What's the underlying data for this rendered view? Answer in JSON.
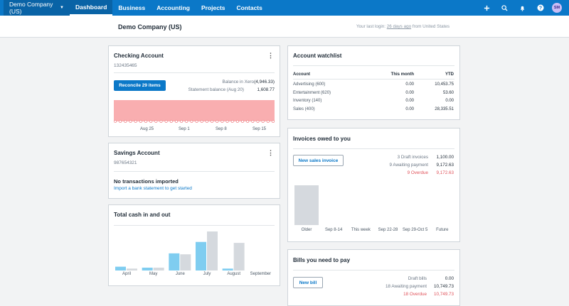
{
  "topnav": {
    "org_name": "Demo Company (US)",
    "items": [
      "Dashboard",
      "Business",
      "Accounting",
      "Projects",
      "Contacts"
    ],
    "active": "Dashboard",
    "avatar_initials": "SM"
  },
  "subhead": {
    "title": "Demo Company (US)",
    "login_prefix": "Your last login: ",
    "login_link": "26 days ago",
    "login_suffix": " from United States"
  },
  "checking": {
    "title": "Checking Account",
    "number": "132435465",
    "reconcile_label": "Reconcile 29 items",
    "balance_xero_label": "Balance in Xero",
    "balance_xero_value": "(4,946.33)",
    "statement_label": "Statement balance (Aug 20)",
    "statement_value": "1,608.77",
    "chart_data": {
      "type": "area",
      "x_labels": [
        "Aug 25",
        "Sep 1",
        "Sep 8",
        "Sep 15"
      ],
      "color": "#f9aeb0"
    }
  },
  "savings": {
    "title": "Savings Account",
    "number": "987654321",
    "empty_title": "No transactions imported",
    "empty_link": "Import a bank statement to get started"
  },
  "cash": {
    "title": "Total cash in and out",
    "chart_data": {
      "type": "bar",
      "categories": [
        "April",
        "May",
        "June",
        "July",
        "August",
        "September"
      ],
      "series": [
        {
          "values": [
            4,
            3,
            18,
            30,
            2,
            0
          ],
          "color": "#7fcdf0"
        },
        {
          "values": [
            2,
            3,
            17,
            41,
            29,
            0
          ],
          "color": "#d5d9de"
        }
      ]
    }
  },
  "watchlist": {
    "title": "Account watchlist",
    "headers": [
      "Account",
      "This month",
      "YTD"
    ],
    "rows": [
      {
        "account": "Advertising (600)",
        "month": "0.00",
        "ytd": "10,453.75"
      },
      {
        "account": "Entertainment (620)",
        "month": "0.00",
        "ytd": "53.60"
      },
      {
        "account": "Inventory (140)",
        "month": "0.00",
        "ytd": "0.00"
      },
      {
        "account": "Sales (400)",
        "month": "0.00",
        "ytd": "28,335.51"
      }
    ]
  },
  "invoices": {
    "title": "Invoices owed to you",
    "button_label": "New sales invoice",
    "draft_label": "3 Draft invoices",
    "draft_value": "1,100.00",
    "awaiting_label": "9 Awaiting payment",
    "awaiting_value": "9,172.63",
    "overdue_label": "9 Overdue",
    "overdue_value": "9,172.63",
    "chart_data": {
      "type": "bar",
      "categories": [
        "Older",
        "Sep 8-14",
        "This week",
        "Sep 22-28",
        "Sep 29-Oct 5",
        "Future"
      ],
      "values": [
        9172.63,
        0,
        0,
        0,
        0,
        0
      ],
      "color": "#d5d9de"
    }
  },
  "bills": {
    "title": "Bills you need to pay",
    "button_label": "New bill",
    "draft_label": "Draft bills",
    "draft_value": "0.00",
    "awaiting_label": "18 Awaiting payment",
    "awaiting_value": "10,749.73",
    "overdue_label": "18 Overdue",
    "overdue_value": "10,749.73"
  }
}
